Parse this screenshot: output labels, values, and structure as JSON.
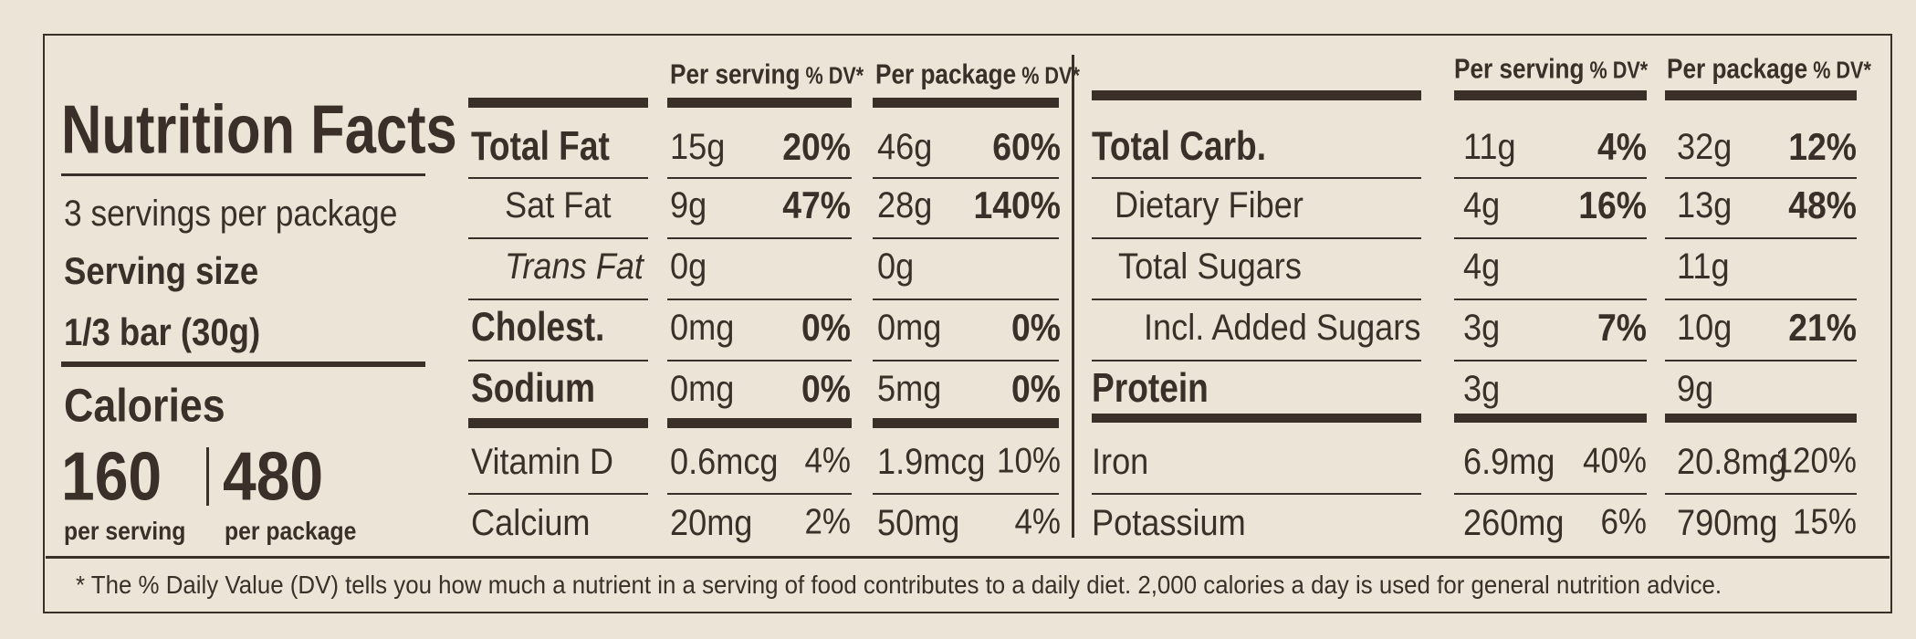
{
  "title": "Nutrition Facts",
  "servings": "3 servings per package",
  "serving_size_label": "Serving size",
  "serving_size": "1/3 bar (30g)",
  "calories": {
    "label": "Calories",
    "per_serving": "160",
    "per_serving_label": "per serving",
    "per_package": "480",
    "per_package_label": "per package"
  },
  "left_table": {
    "headers": [
      {
        "amount": "Per serving",
        "dv": "% DV*"
      },
      {
        "amount": "Per package",
        "dv": "% DV*"
      }
    ],
    "rows": [
      {
        "name": "Total Fat",
        "serving_amount": "15g",
        "serving_dv": "20%",
        "package_amount": "46g",
        "package_dv": "60%"
      },
      {
        "name": "Sat Fat",
        "serving_amount": "9g",
        "serving_dv": "47%",
        "package_amount": "28g",
        "package_dv": "140%"
      },
      {
        "name": "Trans Fat",
        "serving_amount": "0g",
        "package_amount": "0g"
      },
      {
        "name": "Cholest.",
        "serving_amount": "0mg",
        "serving_dv": "0%",
        "package_amount": "0mg",
        "package_dv": "0%"
      },
      {
        "name": "Sodium",
        "serving_amount": "0mg",
        "serving_dv": "0%",
        "package_amount": "5mg",
        "package_dv": "0%"
      }
    ],
    "minerals": [
      {
        "name": "Vitamin D",
        "serving_amount": "0.6mcg",
        "serving_dv": "4%",
        "package_amount": "1.9mcg",
        "package_dv": "10%"
      },
      {
        "name": "Calcium",
        "serving_amount": "20mg",
        "serving_dv": "2%",
        "package_amount": "50mg",
        "package_dv": "4%"
      }
    ]
  },
  "right_table": {
    "headers": [
      {
        "amount": "Per serving",
        "dv": "% DV*"
      },
      {
        "amount": "Per package",
        "dv": "% DV*"
      }
    ],
    "rows": [
      {
        "name": "Total Carb.",
        "serving_amount": "11g",
        "serving_dv": "4%",
        "package_amount": "32g",
        "package_dv": "12%"
      },
      {
        "name": "Dietary Fiber",
        "serving_amount": "4g",
        "serving_dv": "16%",
        "package_amount": "13g",
        "package_dv": "48%"
      },
      {
        "name": "Total Sugars",
        "serving_amount": "4g",
        "package_amount": "11g"
      },
      {
        "name": "Incl. Added Sugars",
        "serving_amount": "3g",
        "serving_dv": "7%",
        "package_amount": "10g",
        "package_dv": "21%"
      },
      {
        "name": "Protein",
        "serving_amount": "3g",
        "package_amount": "9g"
      }
    ],
    "minerals": [
      {
        "name": "Iron",
        "serving_amount": "6.9mg",
        "serving_dv": "40%",
        "package_amount": "20.8mg",
        "package_dv": "120%"
      },
      {
        "name": "Potassium",
        "serving_amount": "260mg",
        "serving_dv": "6%",
        "package_amount": "790mg",
        "package_dv": "15%"
      }
    ]
  },
  "footnote": "* The % Daily Value (DV) tells you how much a nutrient in a serving of food contributes to a daily diet. 2,000 calories a day is used for general nutrition advice."
}
